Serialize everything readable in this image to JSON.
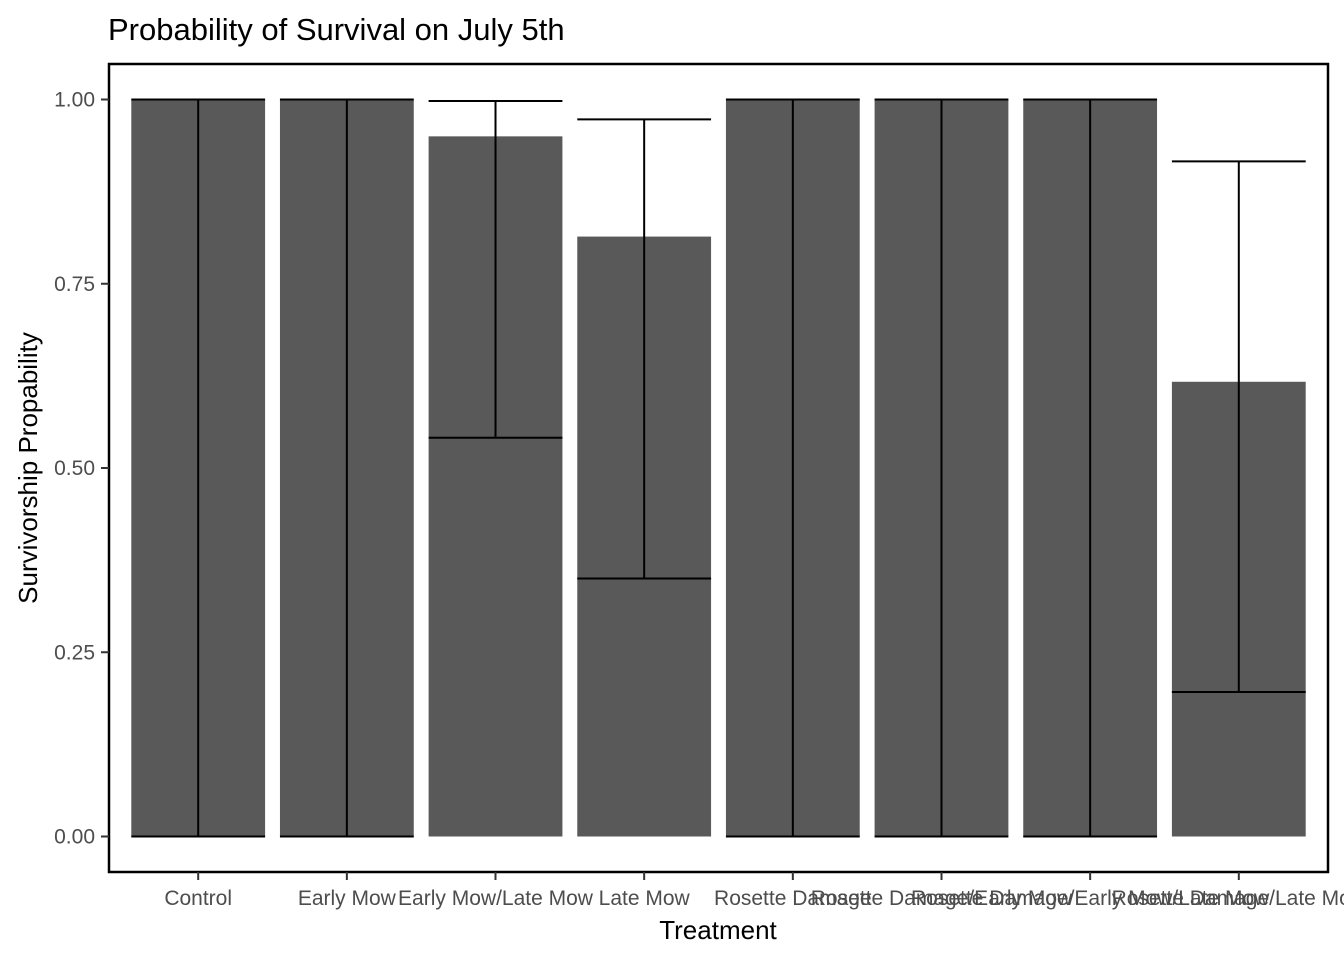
{
  "chart_data": {
    "type": "bar",
    "title": "Probability of Survival on July 5th",
    "xlabel": "Treatment",
    "ylabel": "Survivorship Propability",
    "categories": [
      "Control",
      "Early Mow",
      "Early Mow/Late Mow",
      "Late Mow",
      "Rosette Damage",
      "Rosette Damage/Early Mow",
      "Rosette Damage/Early Mow/Late Mow",
      "Rosette Damage/Late Mow"
    ],
    "values": [
      1.0,
      1.0,
      0.95,
      0.814,
      1.0,
      1.0,
      1.0,
      0.617
    ],
    "error_lower": [
      0.0,
      0.0,
      0.541,
      0.35,
      0.0,
      0.0,
      0.0,
      0.196
    ],
    "error_upper": [
      1.0,
      1.0,
      0.998,
      0.973,
      1.0,
      1.0,
      1.0,
      0.916
    ],
    "ylim": [
      -0.05,
      1.05
    ],
    "yticks": [
      "0.00",
      "0.25",
      "0.50",
      "0.75",
      "1.00"
    ],
    "ytick_values": [
      0,
      0.25,
      0.5,
      0.75,
      1.0
    ],
    "grid": false,
    "bar_color": "#595959",
    "error_color": "#000000",
    "panel_border_color": "#000000"
  }
}
